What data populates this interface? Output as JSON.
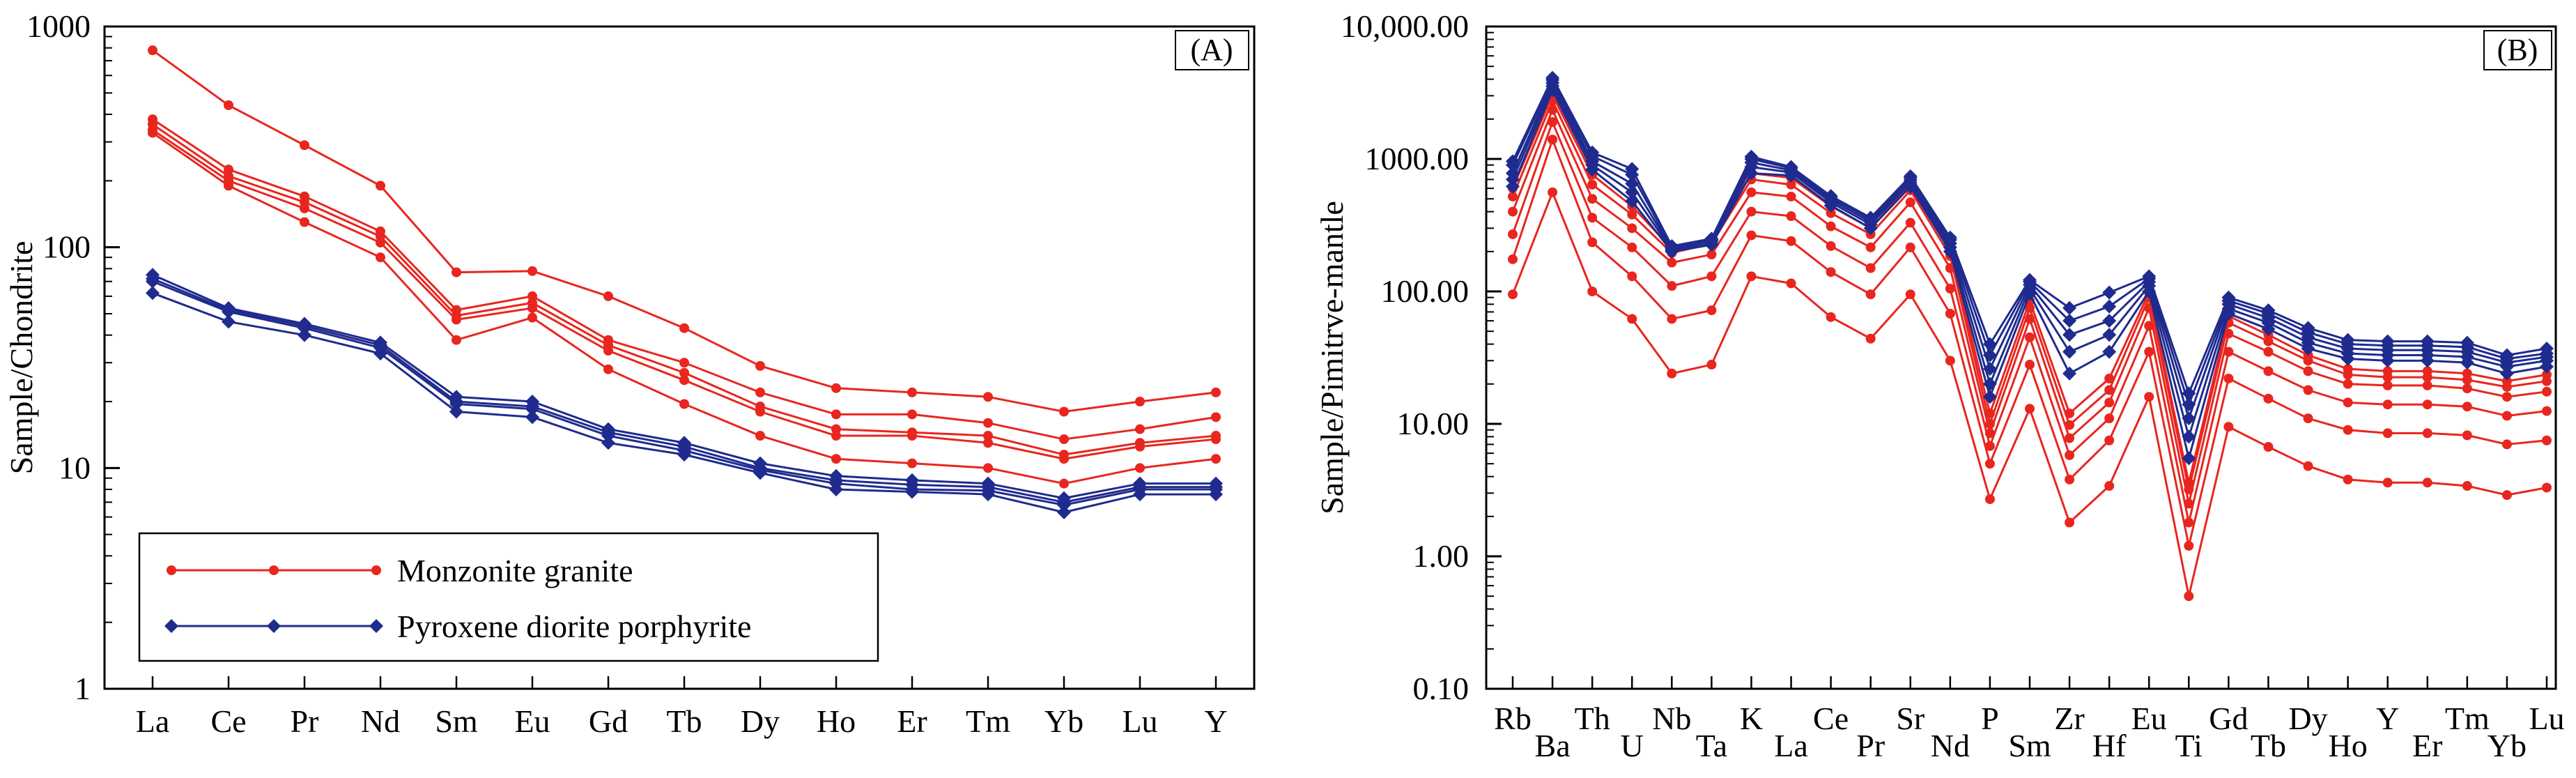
{
  "colors": {
    "monzonite": "#e8261f",
    "pyroxene": "#1f2b8e"
  },
  "chart_data": [
    {
      "type": "line",
      "panel_label": "(A)",
      "ylabel": "Sample/Chondrite",
      "yscale": "log",
      "ylim": [
        1,
        1000
      ],
      "yticks": [
        "1",
        "10",
        "100",
        "1000"
      ],
      "categories": [
        "La",
        "Ce",
        "Pr",
        "Nd",
        "Sm",
        "Eu",
        "Gd",
        "Tb",
        "Dy",
        "Ho",
        "Er",
        "Tm",
        "Yb",
        "Lu",
        "Y"
      ],
      "legend": {
        "position": "bottom-left",
        "entries": [
          "Monzonite granite",
          "Pyroxene diorite porphyrite"
        ]
      },
      "series": [
        {
          "group": "Monzonite granite",
          "values": [
            780,
            440,
            290,
            190,
            77,
            78,
            60,
            43,
            29,
            23,
            22,
            21,
            18,
            20,
            22
          ]
        },
        {
          "group": "Monzonite granite",
          "values": [
            380,
            225,
            170,
            118,
            52,
            60,
            38,
            30,
            22,
            17.5,
            17.5,
            16,
            13.5,
            15,
            17
          ]
        },
        {
          "group": "Monzonite granite",
          "values": [
            360,
            210,
            160,
            112,
            49,
            56,
            36,
            27,
            19,
            15,
            14.5,
            14,
            11.5,
            13,
            14
          ]
        },
        {
          "group": "Monzonite granite",
          "values": [
            340,
            200,
            150,
            105,
            47,
            53,
            34,
            25,
            18,
            14,
            14,
            13,
            11,
            12.5,
            13.5
          ]
        },
        {
          "group": "Monzonite granite",
          "values": [
            330,
            190,
            130,
            90,
            38,
            48,
            28,
            19.5,
            14,
            11,
            10.5,
            10,
            8.5,
            10,
            11
          ]
        },
        {
          "group": "Pyroxene diorite porphyrite",
          "values": [
            75,
            53,
            45,
            37,
            21,
            20,
            15,
            13,
            10.5,
            9.2,
            8.8,
            8.5,
            7.3,
            8.5,
            8.5
          ]
        },
        {
          "group": "Pyroxene diorite porphyrite",
          "values": [
            72,
            52,
            44,
            36,
            20,
            19,
            14.5,
            12.5,
            10,
            8.8,
            8.4,
            8.2,
            7,
            8.2,
            8.2
          ]
        },
        {
          "group": "Pyroxene diorite porphyrite",
          "values": [
            70,
            51,
            43,
            35,
            19.5,
            18.5,
            14,
            12,
            9.8,
            8.5,
            8,
            7.9,
            6.8,
            8,
            8
          ]
        },
        {
          "group": "Pyroxene diorite porphyrite",
          "values": [
            62,
            46,
            40,
            33,
            18,
            17,
            13,
            11.5,
            9.5,
            8,
            7.8,
            7.6,
            6.3,
            7.6,
            7.6
          ]
        }
      ]
    },
    {
      "type": "line",
      "panel_label": "(B)",
      "ylabel": "Sample/Pimitrve-mantle",
      "yscale": "log",
      "ylim": [
        0.1,
        10000
      ],
      "yticks": [
        "0.10",
        "1.00",
        "10.00",
        "100.00",
        "1000.00",
        "10,000.00"
      ],
      "categories": [
        "Rb",
        "Ba",
        "Th",
        "U",
        "Nb",
        "Ta",
        "K",
        "La",
        "Ce",
        "Pr",
        "Sr",
        "Nd",
        "P",
        "Sm",
        "Zr",
        "Hf",
        "Eu",
        "Ti",
        "Gd",
        "Tb",
        "Dy",
        "Ho",
        "Y",
        "Er",
        "Tm",
        "Yb",
        "Lu"
      ],
      "series": [
        {
          "group": "Monzonite granite",
          "values": [
            95,
            560,
            100,
            62,
            24,
            28,
            130,
            115,
            64,
            44,
            95,
            30,
            2.7,
            13,
            1.8,
            3.4,
            16,
            0.5,
            9.5,
            6.7,
            4.8,
            3.8,
            3.6,
            3.6,
            3.4,
            2.9,
            3.3
          ]
        },
        {
          "group": "Monzonite granite",
          "values": [
            175,
            1400,
            235,
            130,
            62,
            72,
            265,
            240,
            140,
            95,
            215,
            68,
            5,
            28,
            3.8,
            7.5,
            35,
            1.2,
            22,
            15.5,
            11,
            9,
            8.5,
            8.5,
            8.2,
            7,
            7.5
          ]
        },
        {
          "group": "Monzonite granite",
          "values": [
            270,
            1900,
            360,
            215,
            110,
            130,
            400,
            370,
            220,
            150,
            330,
            105,
            6.8,
            45,
            5.8,
            11,
            55,
            1.8,
            35,
            25,
            18,
            14.5,
            14,
            14,
            13.5,
            11.5,
            12.5
          ]
        },
        {
          "group": "Monzonite granite",
          "values": [
            400,
            2350,
            500,
            300,
            165,
            190,
            560,
            520,
            310,
            215,
            470,
            150,
            8.5,
            62,
            7.8,
            14.5,
            75,
            2.5,
            48,
            35,
            25,
            20,
            19.5,
            19.5,
            18.5,
            16,
            17.5
          ]
        },
        {
          "group": "Monzonite granite",
          "values": [
            520,
            2750,
            640,
            380,
            195,
            230,
            700,
            640,
            390,
            270,
            580,
            185,
            10,
            75,
            9.8,
            18,
            90,
            3.2,
            58,
            42,
            30,
            23.5,
            22.5,
            22.5,
            21.5,
            19,
            21
          ]
        },
        {
          "group": "Monzonite granite",
          "values": [
            600,
            3050,
            760,
            440,
            210,
            245,
            780,
            720,
            440,
            300,
            640,
            205,
            12,
            85,
            12,
            22,
            98,
            3.6,
            65,
            47,
            33,
            26,
            25,
            25,
            24,
            21,
            23.5
          ]
        },
        {
          "group": "Pyroxene diorite porphyrite",
          "values": [
            620,
            3300,
            830,
            480,
            200,
            225,
            780,
            750,
            445,
            300,
            620,
            200,
            16,
            96,
            24,
            35,
            100,
            5.5,
            68,
            52,
            37,
            31,
            30,
            30,
            29,
            24,
            27
          ]
        },
        {
          "group": "Pyroxene diorite porphyrite",
          "values": [
            700,
            3550,
            900,
            560,
            205,
            230,
            870,
            790,
            470,
            320,
            660,
            215,
            20,
            105,
            35,
            47,
            110,
            8,
            74,
            58,
            41,
            34,
            33,
            33,
            32,
            27,
            30
          ]
        },
        {
          "group": "Pyroxene diorite porphyrite",
          "values": [
            780,
            3750,
            960,
            650,
            210,
            240,
            940,
            820,
            490,
            335,
            690,
            230,
            26,
            112,
            47,
            60,
            118,
            11,
            80,
            63,
            45,
            37,
            36,
            36,
            35,
            29,
            32
          ]
        },
        {
          "group": "Pyroxene diorite porphyrite",
          "values": [
            900,
            3950,
            1050,
            760,
            215,
            245,
            1000,
            850,
            510,
            350,
            720,
            245,
            33,
            118,
            60,
            77,
            125,
            14,
            85,
            68,
            49,
            40,
            39,
            39,
            38,
            31,
            34
          ]
        },
        {
          "group": "Pyroxene diorite porphyrite",
          "values": [
            960,
            4100,
            1120,
            840,
            220,
            250,
            1040,
            870,
            525,
            360,
            740,
            255,
            40,
            122,
            75,
            98,
            130,
            17,
            90,
            72,
            53,
            43,
            42,
            42,
            41,
            33,
            37
          ]
        }
      ]
    }
  ]
}
